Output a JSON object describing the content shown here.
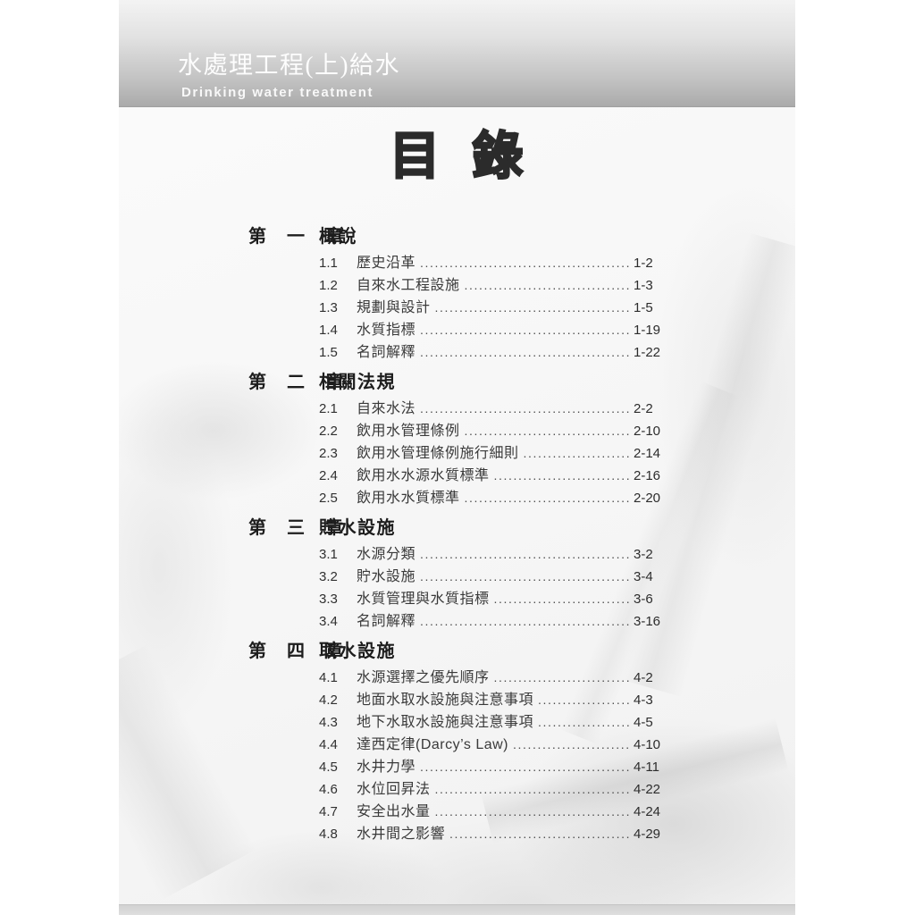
{
  "header": {
    "title": "水處理工程(上)給水",
    "subtitle": "Drinking water treatment"
  },
  "toc_title": "目 錄",
  "chapters": [
    {
      "label": "第 一 章",
      "title": "概說",
      "items": [
        {
          "num": "1.1",
          "title": "歷史沿革",
          "page": "1-2"
        },
        {
          "num": "1.2",
          "title": "自來水工程設施",
          "page": "1-3"
        },
        {
          "num": "1.3",
          "title": "規劃與設計",
          "page": "1-5"
        },
        {
          "num": "1.4",
          "title": "水質指標",
          "page": "1-19"
        },
        {
          "num": "1.5",
          "title": "名詞解釋",
          "page": "1-22"
        }
      ]
    },
    {
      "label": "第 二 章",
      "title": "相關法規",
      "items": [
        {
          "num": "2.1",
          "title": "自來水法",
          "page": "2-2"
        },
        {
          "num": "2.2",
          "title": "飲用水管理條例",
          "page": "2-10"
        },
        {
          "num": "2.3",
          "title": "飲用水管理條例施行細則",
          "page": "2-14"
        },
        {
          "num": "2.4",
          "title": "飲用水水源水質標準",
          "page": "2-16"
        },
        {
          "num": "2.5",
          "title": "飲用水水質標準",
          "page": "2-20"
        }
      ]
    },
    {
      "label": "第 三 章",
      "title": "貯水設施",
      "items": [
        {
          "num": "3.1",
          "title": "水源分類",
          "page": "3-2"
        },
        {
          "num": "3.2",
          "title": "貯水設施",
          "page": "3-4"
        },
        {
          "num": "3.3",
          "title": "水質管理與水質指標",
          "page": "3-6"
        },
        {
          "num": "3.4",
          "title": "名詞解釋",
          "page": "3-16"
        }
      ]
    },
    {
      "label": "第 四 章",
      "title": "取水設施",
      "items": [
        {
          "num": "4.1",
          "title": "水源選擇之優先順序",
          "page": "4-2"
        },
        {
          "num": "4.2",
          "title": "地面水取水設施與注意事項",
          "page": "4-3"
        },
        {
          "num": "4.3",
          "title": "地下水取水設施與注意事項",
          "page": "4-5"
        },
        {
          "num": "4.4",
          "title": "達西定律(Darcy’s Law)",
          "page": "4-10"
        },
        {
          "num": "4.5",
          "title": "水井力學",
          "page": "4-11"
        },
        {
          "num": "4.6",
          "title": "水位回昇法",
          "page": "4-22"
        },
        {
          "num": "4.7",
          "title": "安全出水量",
          "page": "4-24"
        },
        {
          "num": "4.8",
          "title": "水井間之影響",
          "page": "4-29"
        }
      ]
    }
  ],
  "colors": {
    "banner_gradient_top": "#f3f3f3",
    "banner_gradient_bottom": "#aaaaaa",
    "banner_text": "#fdfdfd",
    "toc_title_text": "#2b2b2b",
    "chapter_heading_text": "#1d1d1d",
    "entry_text": "#3a3a3a",
    "footer_strip": "#d2d2d2",
    "page_background": "#f6f6f6"
  }
}
